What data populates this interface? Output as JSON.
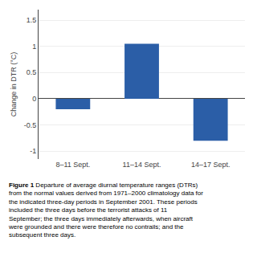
{
  "chart_data": {
    "type": "bar",
    "categories": [
      "8–11 Sept.",
      "11–14 Sept.",
      "14–17 Sept."
    ],
    "values": [
      -0.2,
      1.05,
      -0.8
    ],
    "color": "#2b5ea7",
    "ylabel": "Change in DTR (°C)",
    "ylim": [
      -1.15,
      1.7
    ],
    "yticks": [
      -1,
      -0.5,
      0,
      0.5,
      1,
      1.5
    ],
    "grid": true,
    "annotations": [
      "Figure 1",
      "Departure of average diurnal temperature ranges (DTRs) from the normal values derived from 1971–2000 climatology data for the indicated three-day periods in September 2001. These periods included the three days before the terrorist attacks of 11 September; the three days immediately afterwards, when aircraft were grounded and there were therefore no contrails; and the subsequent three days."
    ]
  }
}
